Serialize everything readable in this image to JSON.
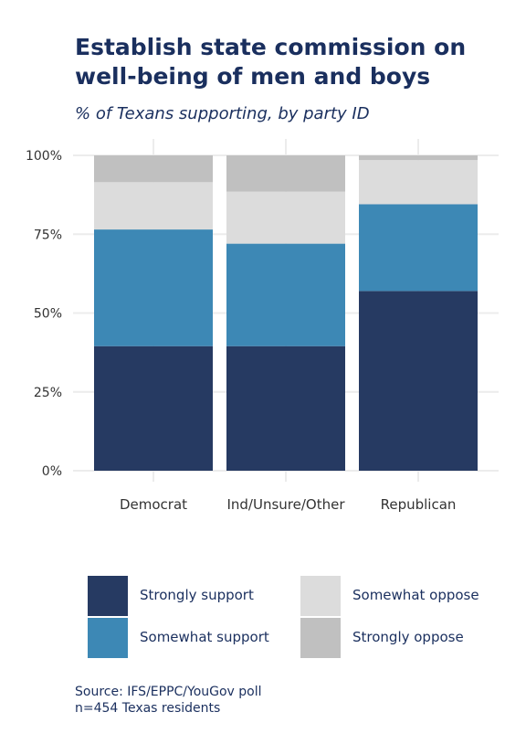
{
  "header": {
    "title": "Establish state commission on well-being of men and boys",
    "subtitle": "% of Texans supporting, by party ID"
  },
  "chart_data": {
    "type": "bar",
    "stacked": true,
    "categories": [
      "Democrat",
      "Ind/Unsure/Other",
      "Republican"
    ],
    "series": [
      {
        "name": "Strongly support",
        "values": [
          39.5,
          39.5,
          57
        ],
        "color": "#263a62"
      },
      {
        "name": "Somewhat support",
        "values": [
          37,
          32.5,
          27.5
        ],
        "color": "#3d88b5"
      },
      {
        "name": "Somewhat oppose",
        "values": [
          15,
          16.5,
          14
        ],
        "color": "#dcdcdc"
      },
      {
        "name": "Strongly oppose",
        "values": [
          8.5,
          11.5,
          1.5
        ],
        "color": "#c0c0c0"
      }
    ],
    "yticks": [
      "0%",
      "25%",
      "50%",
      "75%",
      "100%"
    ],
    "ylim": [
      0,
      100
    ],
    "grid": true,
    "legend_position": "bottom"
  },
  "source": {
    "line1": "Source: IFS/EPPC/YouGov poll",
    "line2": "n=454 Texas residents"
  }
}
